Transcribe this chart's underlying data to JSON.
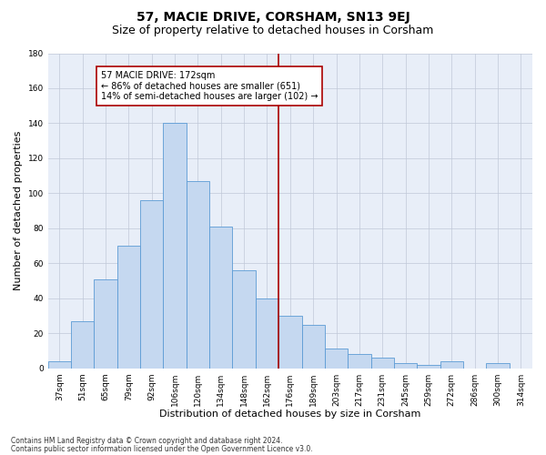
{
  "title": "57, MACIE DRIVE, CORSHAM, SN13 9EJ",
  "subtitle": "Size of property relative to detached houses in Corsham",
  "xlabel": "Distribution of detached houses by size in Corsham",
  "ylabel": "Number of detached properties",
  "bar_labels": [
    "37sqm",
    "51sqm",
    "65sqm",
    "79sqm",
    "92sqm",
    "106sqm",
    "120sqm",
    "134sqm",
    "148sqm",
    "162sqm",
    "176sqm",
    "189sqm",
    "203sqm",
    "217sqm",
    "231sqm",
    "245sqm",
    "259sqm",
    "272sqm",
    "286sqm",
    "300sqm",
    "314sqm"
  ],
  "bar_values": [
    4,
    27,
    51,
    70,
    96,
    140,
    107,
    81,
    56,
    40,
    30,
    25,
    11,
    8,
    6,
    3,
    2,
    4,
    0,
    3,
    0
  ],
  "bar_color": "#c5d8f0",
  "bar_edge_color": "#5b9bd5",
  "grid_color": "#c0c8d8",
  "bg_color": "#e8eef8",
  "vline_x": 9.5,
  "vline_color": "#aa0000",
  "annotation_text": "57 MACIE DRIVE: 172sqm\n← 86% of detached houses are smaller (651)\n14% of semi-detached houses are larger (102) →",
  "annotation_box_color": "#aa0000",
  "ylim": [
    0,
    180
  ],
  "yticks": [
    0,
    20,
    40,
    60,
    80,
    100,
    120,
    140,
    160,
    180
  ],
  "footer1": "Contains HM Land Registry data © Crown copyright and database right 2024.",
  "footer2": "Contains public sector information licensed under the Open Government Licence v3.0.",
  "title_fontsize": 10,
  "subtitle_fontsize": 9,
  "tick_fontsize": 6.5,
  "ylabel_fontsize": 8,
  "xlabel_fontsize": 8,
  "annotation_fontsize": 7,
  "footer_fontsize": 5.5
}
